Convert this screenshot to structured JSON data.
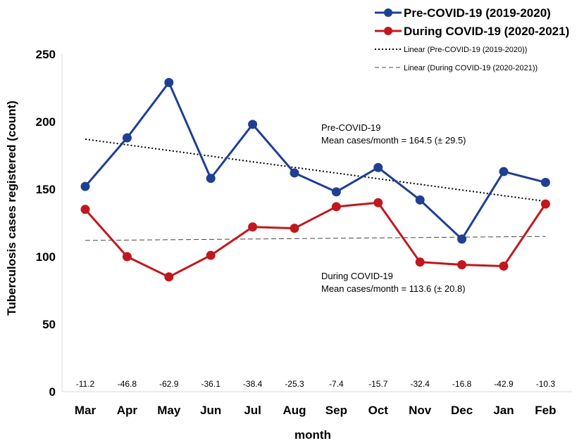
{
  "chart_data": {
    "type": "line",
    "title": "",
    "xlabel": "month",
    "ylabel": "Tuberculosis cases registered (count)",
    "ylim": [
      0,
      250
    ],
    "yticks": [
      0,
      50,
      100,
      150,
      200,
      250
    ],
    "categories": [
      "Mar",
      "Apr",
      "May",
      "Jun",
      "Jul",
      "Aug",
      "Sep",
      "Oct",
      "Nov",
      "Dec",
      "Jan",
      "Feb"
    ],
    "series": [
      {
        "name": "Pre-COVID-19 (2019-2020)",
        "color": "#1f3f93",
        "values": [
          152,
          188,
          229,
          158,
          198,
          162,
          148,
          166,
          142,
          113,
          163,
          155
        ]
      },
      {
        "name": "During COVID-19 (2020-2021)",
        "color": "#c0181e",
        "values": [
          135,
          100,
          85,
          101,
          122,
          121,
          137,
          140,
          96,
          94,
          93,
          139
        ]
      }
    ],
    "trendlines": [
      {
        "name": "Linear (Pre-COVID-19 (2019-2020))",
        "style": "dotted",
        "color": "#000000",
        "start": 187,
        "end": 141
      },
      {
        "name": "Linear (During COVID-19 (2020-2021))",
        "style": "dashed",
        "color": "#444444",
        "start": 112,
        "end": 115
      }
    ],
    "percent_change": [
      "-11.2",
      "-46.8",
      "-62.9",
      "-36.1",
      "-38.4",
      "-25.3",
      "-7.4",
      "-15.7",
      "-32.4",
      "-16.8",
      "-42.9",
      "-10.3"
    ],
    "annotations": [
      {
        "lines": [
          "Pre-COVID-19",
          "Mean cases/month = 164.5 (± 29.5)"
        ]
      },
      {
        "lines": [
          "During COVID-19",
          "Mean cases/month = 113.6 (± 20.8)"
        ]
      }
    ],
    "legend_position": "top-right",
    "grid": false
  }
}
